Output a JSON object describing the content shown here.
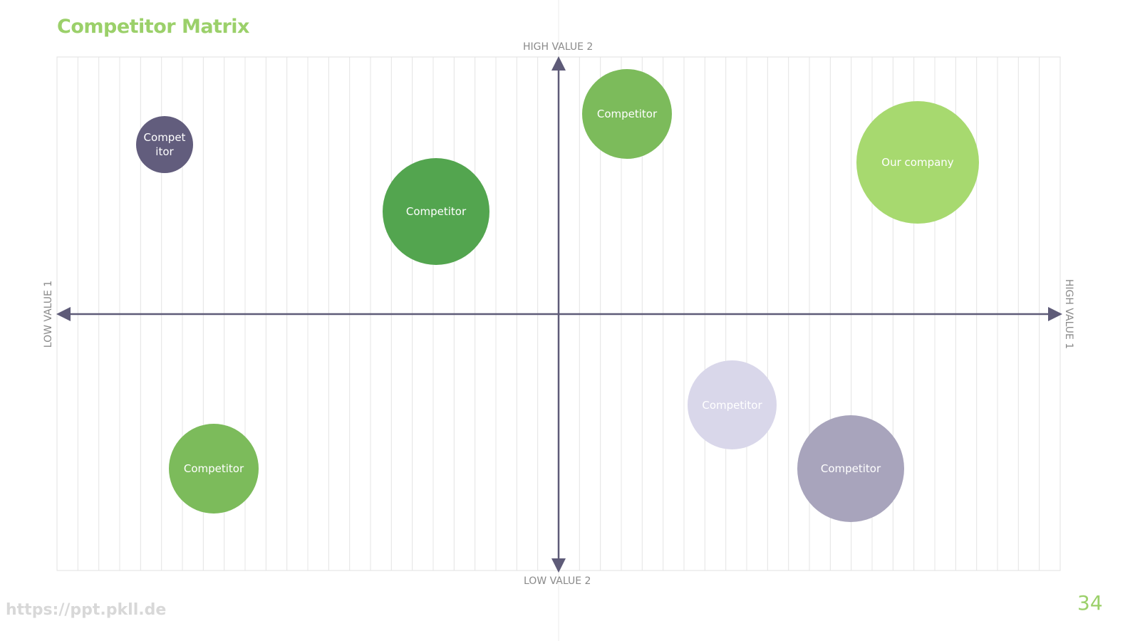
{
  "header": {
    "title": "Competitor Matrix"
  },
  "axes": {
    "top": "HIGH VALUE 2",
    "bottom": "LOW VALUE 2",
    "left": "LOW VALUE 1",
    "right": "HIGH VALUE 1"
  },
  "nodes": [
    {
      "label": "Competitor"
    },
    {
      "label": "Competitor"
    },
    {
      "label": "Competitor"
    },
    {
      "label": "Our company"
    },
    {
      "label": "Competitor"
    },
    {
      "label": "Competitor"
    },
    {
      "label": "Competitor"
    }
  ],
  "footer": {
    "url": "https://ppt.pkll.de",
    "page": "34"
  }
}
